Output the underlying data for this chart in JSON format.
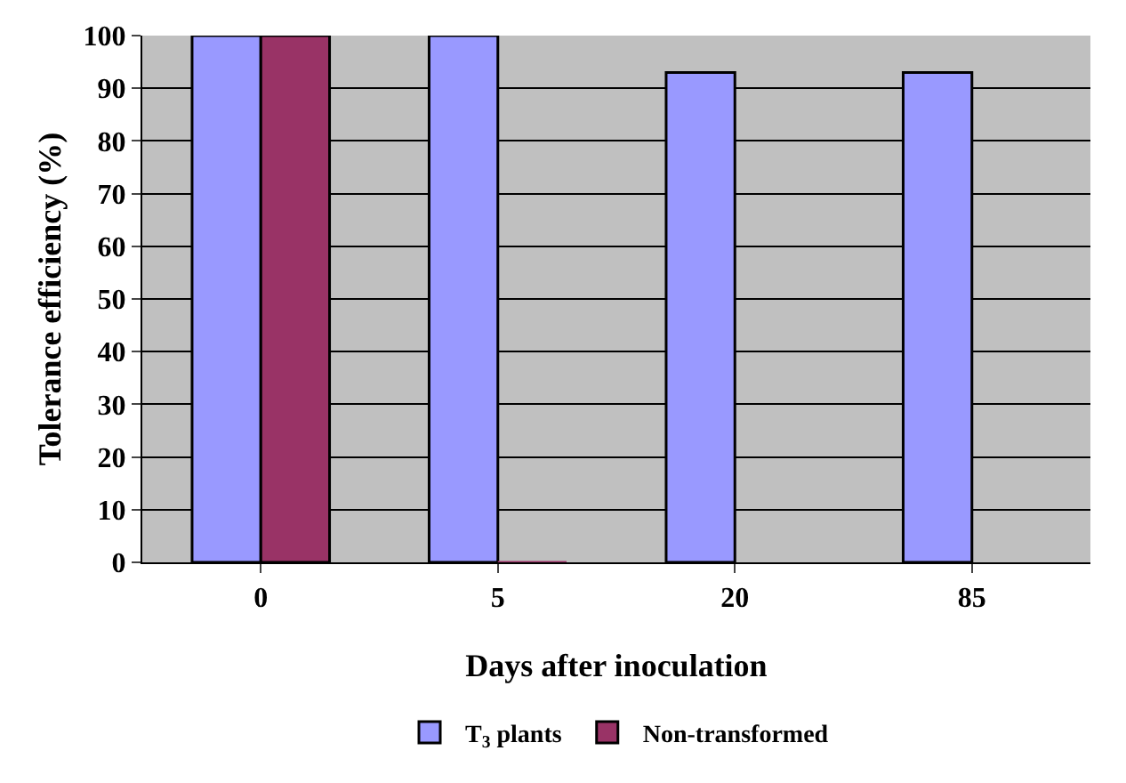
{
  "chart_data": {
    "type": "bar",
    "xlabel": "Days after inoculation",
    "ylabel": "Tolerance efficiency (%)",
    "categories": [
      "0",
      "5",
      "20",
      "85"
    ],
    "series": [
      {
        "name": "T$_{3}$ plants",
        "color": "#9999ff",
        "values": [
          100,
          100,
          93,
          93
        ]
      },
      {
        "name": "Non-transformed",
        "color": "#993366",
        "values": [
          100,
          0,
          null,
          null
        ]
      }
    ],
    "ylim": [
      0,
      100
    ],
    "yticks": [
      0,
      10,
      20,
      30,
      40,
      50,
      60,
      70,
      80,
      90,
      100
    ],
    "grid": "y",
    "legend": "bottom"
  }
}
